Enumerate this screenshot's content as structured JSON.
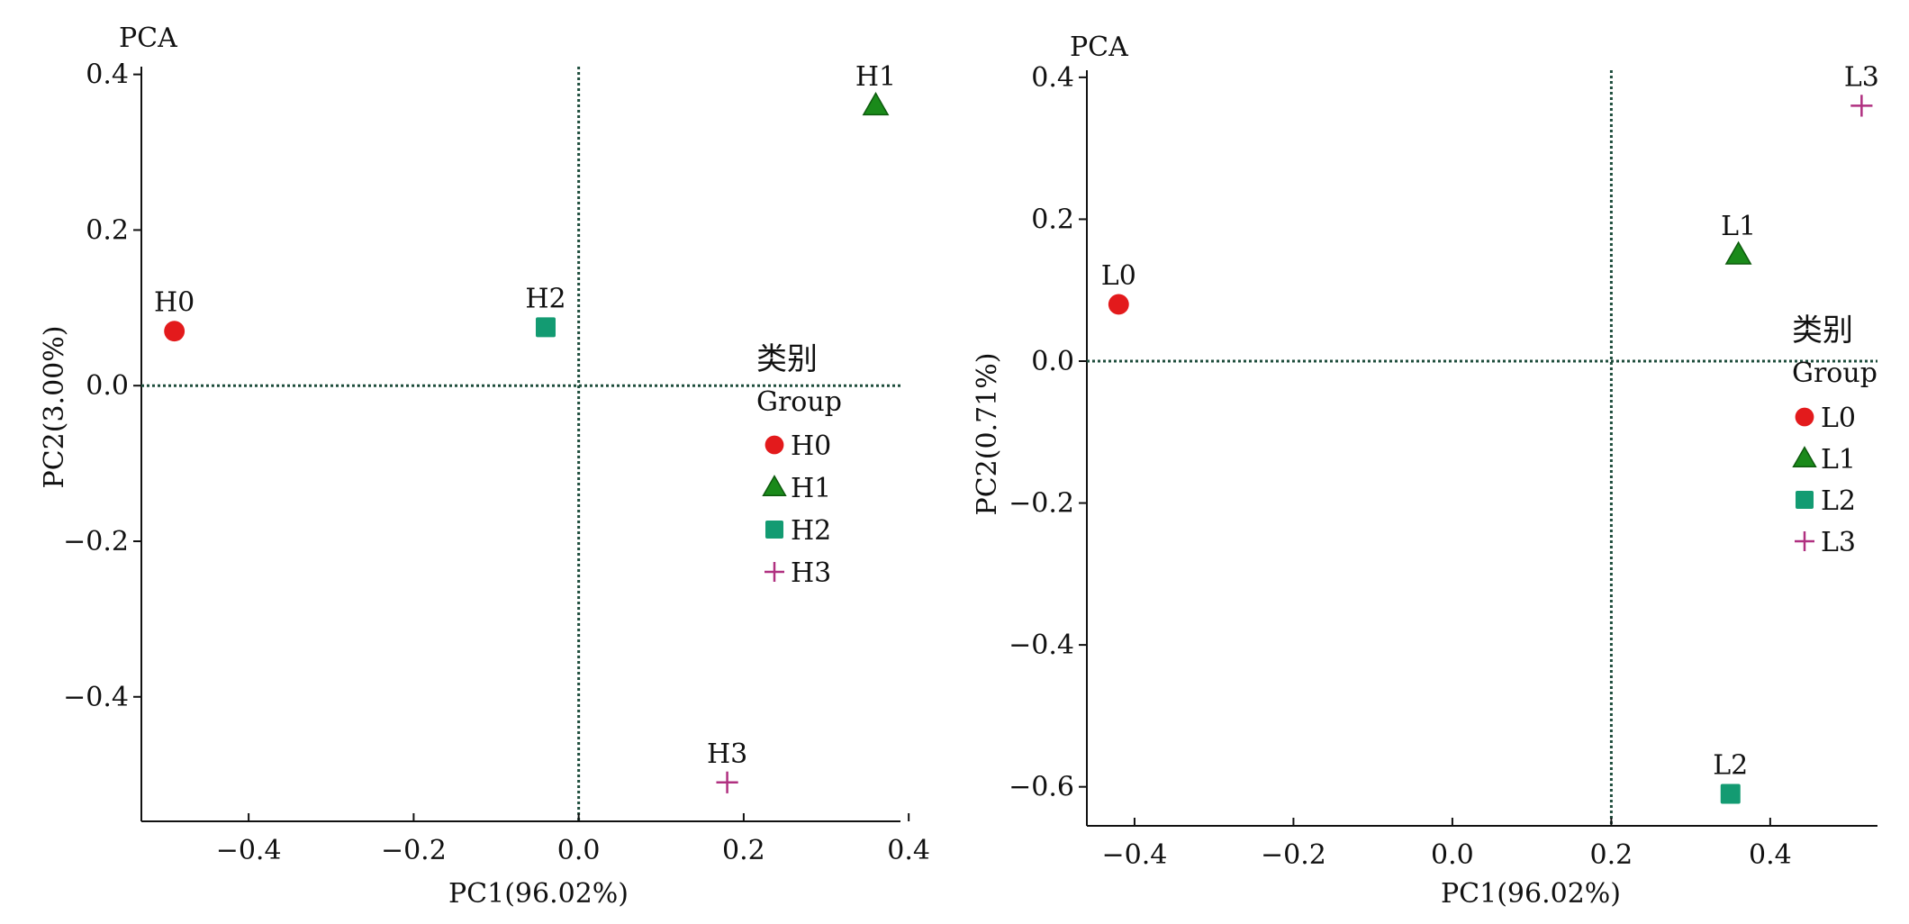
{
  "chart_data": [
    {
      "type": "scatter",
      "title": "PCA",
      "xlabel": "PC1(96.02%)",
      "ylabel": "PC2(3.00%)",
      "xlim": [
        -0.53,
        0.39
      ],
      "ylim": [
        -0.56,
        0.41
      ],
      "xticks": [
        -0.4,
        -0.2,
        0.0,
        0.2,
        0.4
      ],
      "xtick_labels": [
        "−0.4",
        "−0.2",
        "0.0",
        "0.2",
        "0.4"
      ],
      "yticks": [
        0.4,
        0.2,
        0.0,
        -0.2,
        -0.4
      ],
      "ytick_labels": [
        "0.4",
        "0.2",
        "0.0",
        "−0.2",
        "−0.4"
      ],
      "ref_lines": {
        "x": 0.0,
        "y": 0.0
      },
      "grid": false,
      "legend": {
        "title_cn": "类别",
        "title_en": "Group",
        "position": "right"
      },
      "series": [
        {
          "name": "H0",
          "marker": "circle",
          "color": "#e31a1c",
          "x": [
            -0.49
          ],
          "y": [
            0.07
          ]
        },
        {
          "name": "H1",
          "marker": "triangle",
          "color": "#1a8a1a",
          "x": [
            0.36
          ],
          "y": [
            0.36
          ]
        },
        {
          "name": "H2",
          "marker": "square",
          "color": "#139b72",
          "x": [
            -0.04
          ],
          "y": [
            0.075
          ]
        },
        {
          "name": "H3",
          "marker": "plus",
          "color": "#b03080",
          "x": [
            0.18
          ],
          "y": [
            -0.51
          ]
        }
      ]
    },
    {
      "type": "scatter",
      "title": "PCA",
      "xlabel": "PC1(96.02%)",
      "ylabel": "PC2(0.71%)",
      "xlim": [
        -0.46,
        0.535
      ],
      "ylim": [
        -0.655,
        0.41
      ],
      "xticks": [
        -0.4,
        -0.2,
        0.0,
        0.2,
        0.4
      ],
      "xtick_labels": [
        "−0.4",
        "−0.2",
        "0.0",
        "0.2",
        "0.4"
      ],
      "yticks": [
        0.4,
        0.2,
        0.0,
        -0.2,
        -0.4,
        -0.6
      ],
      "ytick_labels": [
        "0.4",
        "0.2",
        "0.0",
        "−0.2",
        "−0.4",
        "−0.6"
      ],
      "ref_lines": {
        "x": 0.2,
        "y": 0.0
      },
      "grid": false,
      "legend": {
        "title_cn": "类别",
        "title_en": "Group",
        "position": "right"
      },
      "series": [
        {
          "name": "L0",
          "marker": "circle",
          "color": "#e31a1c",
          "x": [
            -0.42
          ],
          "y": [
            0.08
          ]
        },
        {
          "name": "L1",
          "marker": "triangle",
          "color": "#1a8a1a",
          "x": [
            0.36
          ],
          "y": [
            0.15
          ]
        },
        {
          "name": "L2",
          "marker": "square",
          "color": "#139b72",
          "x": [
            0.35
          ],
          "y": [
            -0.61
          ]
        },
        {
          "name": "L3",
          "marker": "plus",
          "color": "#b03080",
          "x": [
            0.515
          ],
          "y": [
            0.36
          ]
        }
      ]
    }
  ]
}
